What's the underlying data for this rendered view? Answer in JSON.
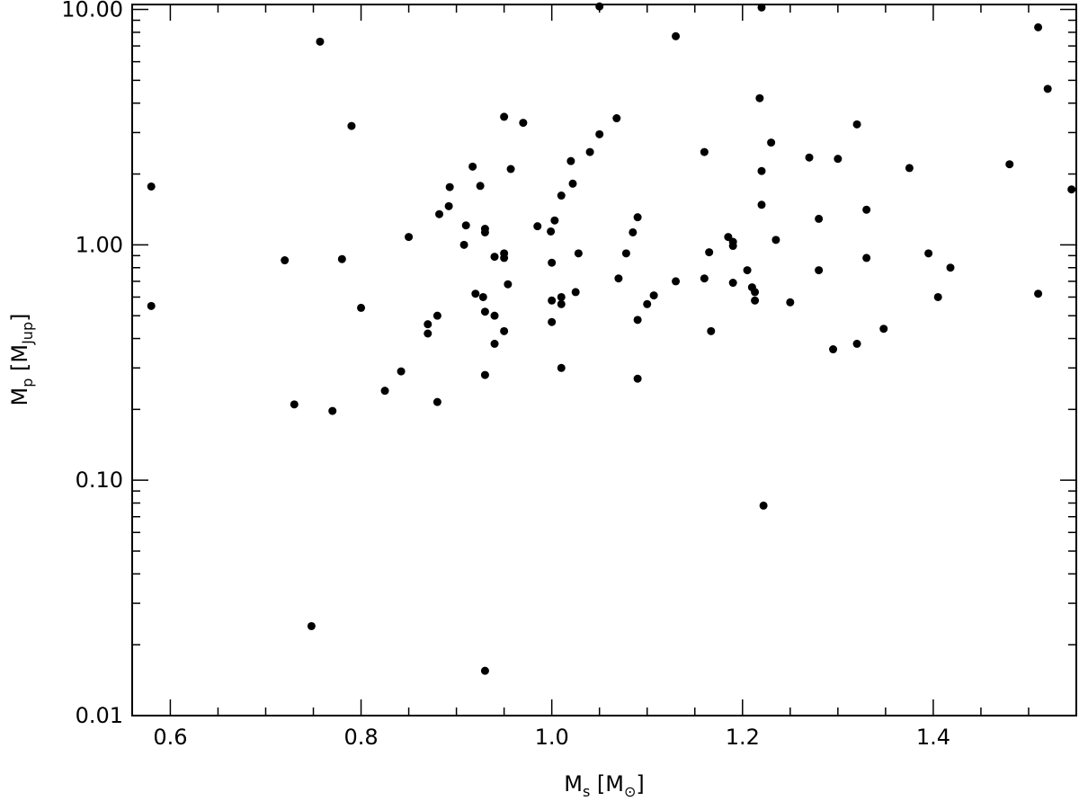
{
  "chart_data": {
    "type": "scatter",
    "title": "",
    "xlabel": {
      "main": "M",
      "sub": "s",
      "unit": "[M",
      "unit_sub": "⊙",
      "close": "]"
    },
    "ylabel": {
      "main": "M",
      "sub": "p",
      "unit": "[M",
      "unit_sub": "Jup",
      "close": "]"
    },
    "xlim": [
      0.56,
      1.55
    ],
    "ylim": [
      0.01,
      10.5
    ],
    "yscale": "log",
    "xticks": [
      {
        "value": 0.6,
        "label": "0.6"
      },
      {
        "value": 0.8,
        "label": "0.8"
      },
      {
        "value": 1.0,
        "label": "1.0"
      },
      {
        "value": 1.2,
        "label": "1.2"
      },
      {
        "value": 1.4,
        "label": "1.4"
      }
    ],
    "yticks": [
      {
        "value": 0.01,
        "label": "0.01"
      },
      {
        "value": 0.1,
        "label": "0.10"
      },
      {
        "value": 1.0,
        "label": "1.00"
      },
      {
        "value": 10.0,
        "label": "10.00"
      }
    ],
    "grid": false,
    "points": [
      [
        0.58,
        1.77
      ],
      [
        0.58,
        0.55
      ],
      [
        0.72,
        0.86
      ],
      [
        0.73,
        0.21
      ],
      [
        0.748,
        0.024
      ],
      [
        0.757,
        7.3
      ],
      [
        0.77,
        0.197
      ],
      [
        0.78,
        0.87
      ],
      [
        0.79,
        3.2
      ],
      [
        0.8,
        0.54
      ],
      [
        0.825,
        0.24
      ],
      [
        0.842,
        0.29
      ],
      [
        0.85,
        1.08
      ],
      [
        0.87,
        0.46
      ],
      [
        0.87,
        0.42
      ],
      [
        0.88,
        0.215
      ],
      [
        0.88,
        0.5
      ],
      [
        0.882,
        1.35
      ],
      [
        0.892,
        1.46
      ],
      [
        0.893,
        1.76
      ],
      [
        0.908,
        1.0
      ],
      [
        0.91,
        1.21
      ],
      [
        0.917,
        2.15
      ],
      [
        0.92,
        0.62
      ],
      [
        0.925,
        1.78
      ],
      [
        0.928,
        0.6
      ],
      [
        0.93,
        1.17
      ],
      [
        0.93,
        1.13
      ],
      [
        0.93,
        0.52
      ],
      [
        0.93,
        0.28
      ],
      [
        0.93,
        0.0155
      ],
      [
        0.94,
        0.38
      ],
      [
        0.94,
        0.5
      ],
      [
        0.94,
        0.89
      ],
      [
        0.95,
        0.92
      ],
      [
        0.95,
        0.88
      ],
      [
        0.95,
        0.43
      ],
      [
        0.95,
        3.5
      ],
      [
        0.954,
        0.68
      ],
      [
        0.957,
        2.1
      ],
      [
        0.97,
        3.3
      ],
      [
        0.985,
        1.2
      ],
      [
        0.999,
        1.14
      ],
      [
        1.0,
        0.84
      ],
      [
        1.0,
        0.58
      ],
      [
        1.0,
        0.47
      ],
      [
        1.003,
        1.27
      ],
      [
        1.01,
        0.6
      ],
      [
        1.01,
        0.56
      ],
      [
        1.01,
        0.3
      ],
      [
        1.01,
        1.62
      ],
      [
        1.02,
        2.27
      ],
      [
        1.022,
        1.82
      ],
      [
        1.025,
        0.63
      ],
      [
        1.028,
        0.92
      ],
      [
        1.04,
        2.48
      ],
      [
        1.05,
        2.95
      ],
      [
        1.05,
        10.3
      ],
      [
        1.068,
        3.45
      ],
      [
        1.07,
        0.72
      ],
      [
        1.078,
        0.92
      ],
      [
        1.085,
        1.13
      ],
      [
        1.09,
        1.31
      ],
      [
        1.09,
        0.48
      ],
      [
        1.09,
        0.27
      ],
      [
        1.1,
        0.56
      ],
      [
        1.107,
        0.61
      ],
      [
        1.13,
        0.7
      ],
      [
        1.13,
        7.7
      ],
      [
        1.16,
        0.72
      ],
      [
        1.16,
        2.48
      ],
      [
        1.165,
        0.93
      ],
      [
        1.167,
        0.43
      ],
      [
        1.185,
        1.08
      ],
      [
        1.19,
        1.03
      ],
      [
        1.19,
        0.99
      ],
      [
        1.19,
        0.69
      ],
      [
        1.205,
        0.78
      ],
      [
        1.21,
        0.66
      ],
      [
        1.213,
        0.63
      ],
      [
        1.213,
        0.58
      ],
      [
        1.218,
        4.2
      ],
      [
        1.22,
        10.2
      ],
      [
        1.22,
        2.06
      ],
      [
        1.22,
        1.48
      ],
      [
        1.222,
        0.078
      ],
      [
        1.23,
        2.72
      ],
      [
        1.235,
        1.05
      ],
      [
        1.25,
        0.57
      ],
      [
        1.27,
        2.35
      ],
      [
        1.28,
        1.29
      ],
      [
        1.28,
        0.78
      ],
      [
        1.295,
        0.36
      ],
      [
        1.3,
        2.32
      ],
      [
        1.32,
        3.25
      ],
      [
        1.32,
        0.38
      ],
      [
        1.33,
        1.41
      ],
      [
        1.33,
        0.88
      ],
      [
        1.348,
        0.44
      ],
      [
        1.375,
        2.12
      ],
      [
        1.395,
        0.92
      ],
      [
        1.405,
        0.6
      ],
      [
        1.418,
        0.8
      ],
      [
        1.48,
        2.2
      ],
      [
        1.51,
        8.4
      ],
      [
        1.51,
        0.62
      ],
      [
        1.52,
        4.6
      ],
      [
        1.545,
        1.72
      ]
    ]
  }
}
